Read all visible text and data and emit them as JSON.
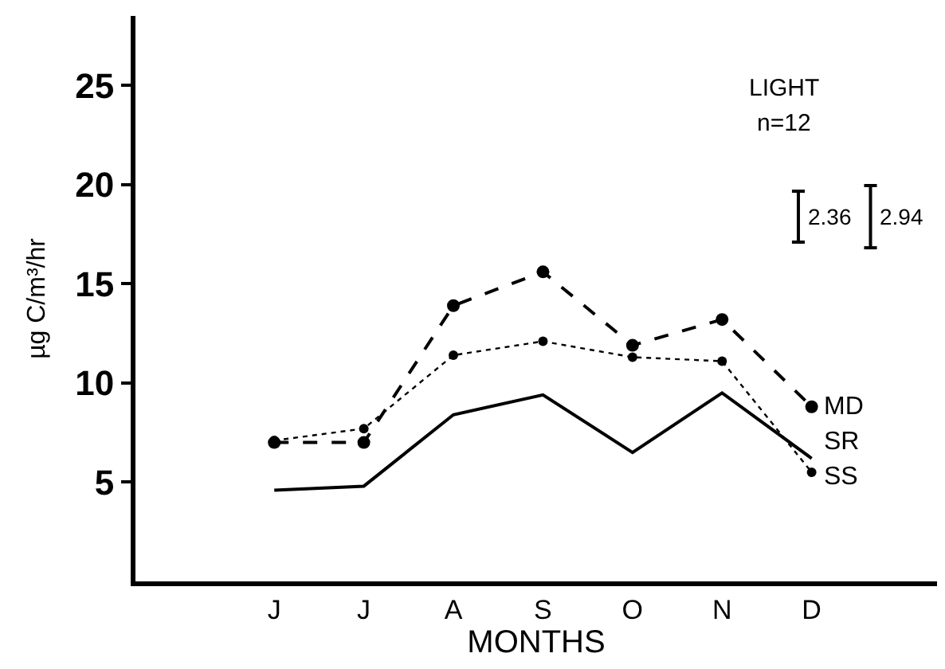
{
  "chart_data": {
    "type": "line",
    "xlabel": "MONTHS",
    "ylabel": "µg C/m³/hr",
    "categories": [
      "J",
      "J",
      "A",
      "S",
      "O",
      "N",
      "D"
    ],
    "ylim": [
      0,
      28.5
    ],
    "yticks": [
      5,
      10,
      15,
      20,
      25
    ],
    "legend": false,
    "series": [
      {
        "name": "MD",
        "color": "#000000",
        "line_style": "dashed",
        "marker": "circle",
        "values": [
          7.0,
          7.0,
          13.9,
          15.6,
          11.9,
          13.2,
          8.8
        ]
      },
      {
        "name": "SR",
        "color": "#000000",
        "line_style": "dotted",
        "marker": "circle",
        "values": [
          7.1,
          7.7,
          11.4,
          12.1,
          11.3,
          11.1,
          5.5
        ]
      },
      {
        "name": "SS",
        "color": "#000000",
        "line_style": "solid",
        "marker": "none",
        "values": [
          4.6,
          4.8,
          8.4,
          9.4,
          6.5,
          9.5,
          6.2
        ]
      }
    ],
    "annotations": [
      "LIGHT",
      "n=12",
      "2.36",
      "2.94"
    ]
  }
}
